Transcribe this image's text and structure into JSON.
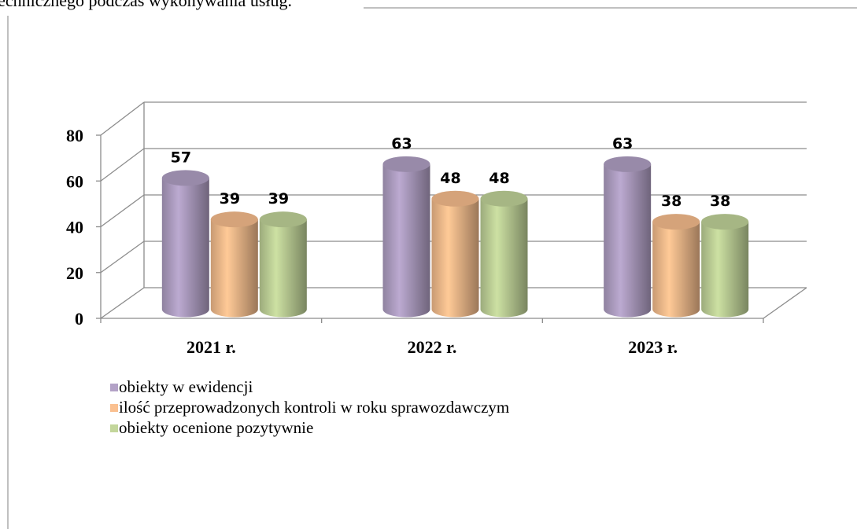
{
  "text_above": "technicznego podczas wykonywania usług.",
  "chart_data": {
    "type": "bar3d",
    "categories": [
      "2021 r.",
      "2022 r.",
      "2023 r."
    ],
    "series": [
      {
        "name": "obiekty w ewidencji",
        "color": "#b3a2c7",
        "values": [
          57,
          63,
          63
        ]
      },
      {
        "name": "ilość przeprowadzonych kontroli w roku sprawozdawczym",
        "color": "#fac090",
        "values": [
          39,
          48,
          38
        ]
      },
      {
        "name": "obiekty ocenione pozytywnie",
        "color": "#c3d69b",
        "values": [
          39,
          48,
          38
        ]
      }
    ],
    "ylim": [
      0,
      80
    ],
    "yticks": [
      0,
      20,
      40,
      60,
      80
    ],
    "grid": true,
    "legend": "bottom-left"
  }
}
